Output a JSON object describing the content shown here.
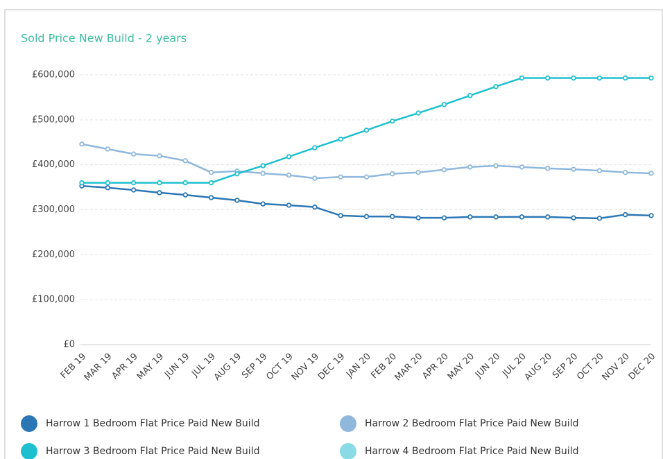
{
  "chart_data": {
    "type": "line",
    "title": "Sold Price New Build - 2 years",
    "categories": [
      "FEB 19",
      "MAR 19",
      "APR 19",
      "MAY 19",
      "JUN 19",
      "JUL 19",
      "AUG 19",
      "SEP 19",
      "OCT 19",
      "NOV 19",
      "DEC 19",
      "JAN 20",
      "FEB 20",
      "MAR 20",
      "APR 20",
      "MAY 20",
      "JUN 20",
      "JUL 20",
      "AUG 20",
      "SEP 20",
      "OCT 20",
      "NOV 20",
      "DEC 20"
    ],
    "series": [
      {
        "name": "Harrow 1 Bedroom Flat Price Paid New Build",
        "color": "#2b77b5",
        "values": [
          353000,
          349000,
          344000,
          338000,
          333000,
          327000,
          321000,
          313000,
          310000,
          306000,
          287000,
          285000,
          285000,
          282000,
          282000,
          284000,
          284000,
          284000,
          284000,
          282000,
          281000,
          289000,
          287000
        ]
      },
      {
        "name": "Harrow 2 Bedroom Flat Price Paid New Build",
        "color": "#8fb8dc",
        "values": [
          446000,
          435000,
          424000,
          420000,
          409000,
          383000,
          386000,
          381000,
          377000,
          370000,
          373000,
          373000,
          380000,
          383000,
          389000,
          395000,
          398000,
          395000,
          392000,
          390000,
          387000,
          383000,
          381000
        ]
      },
      {
        "name": "Harrow 3 Bedroom Flat Price Paid New Build",
        "color": "#1ec0cf",
        "values": [
          360000,
          360000,
          360000,
          360000,
          360000,
          360000,
          380000,
          398000,
          418000,
          438000,
          457000,
          477000,
          497000,
          515000,
          534000,
          554000,
          574000,
          593000,
          593000,
          593000,
          593000,
          593000,
          593000
        ]
      },
      {
        "name": "Harrow 4 Bedroom Flat Price Paid New Build",
        "color": "#8adbe6",
        "values": [
          null,
          null,
          null,
          null,
          null,
          null,
          null,
          null,
          null,
          null,
          null,
          null,
          null,
          null,
          null,
          null,
          null,
          null,
          null,
          null,
          null,
          null,
          null
        ]
      }
    ],
    "ylim": [
      0,
      600000
    ],
    "yticks": [
      {
        "value": 0,
        "label": "£0"
      },
      {
        "value": 100000,
        "label": "£100,000"
      },
      {
        "value": 200000,
        "label": "£200,000"
      },
      {
        "value": 300000,
        "label": "£300,000"
      },
      {
        "value": 400000,
        "label": "£400,000"
      },
      {
        "value": 500000,
        "label": "£500,000"
      },
      {
        "value": 600000,
        "label": "£600,000"
      }
    ],
    "grid": true
  }
}
